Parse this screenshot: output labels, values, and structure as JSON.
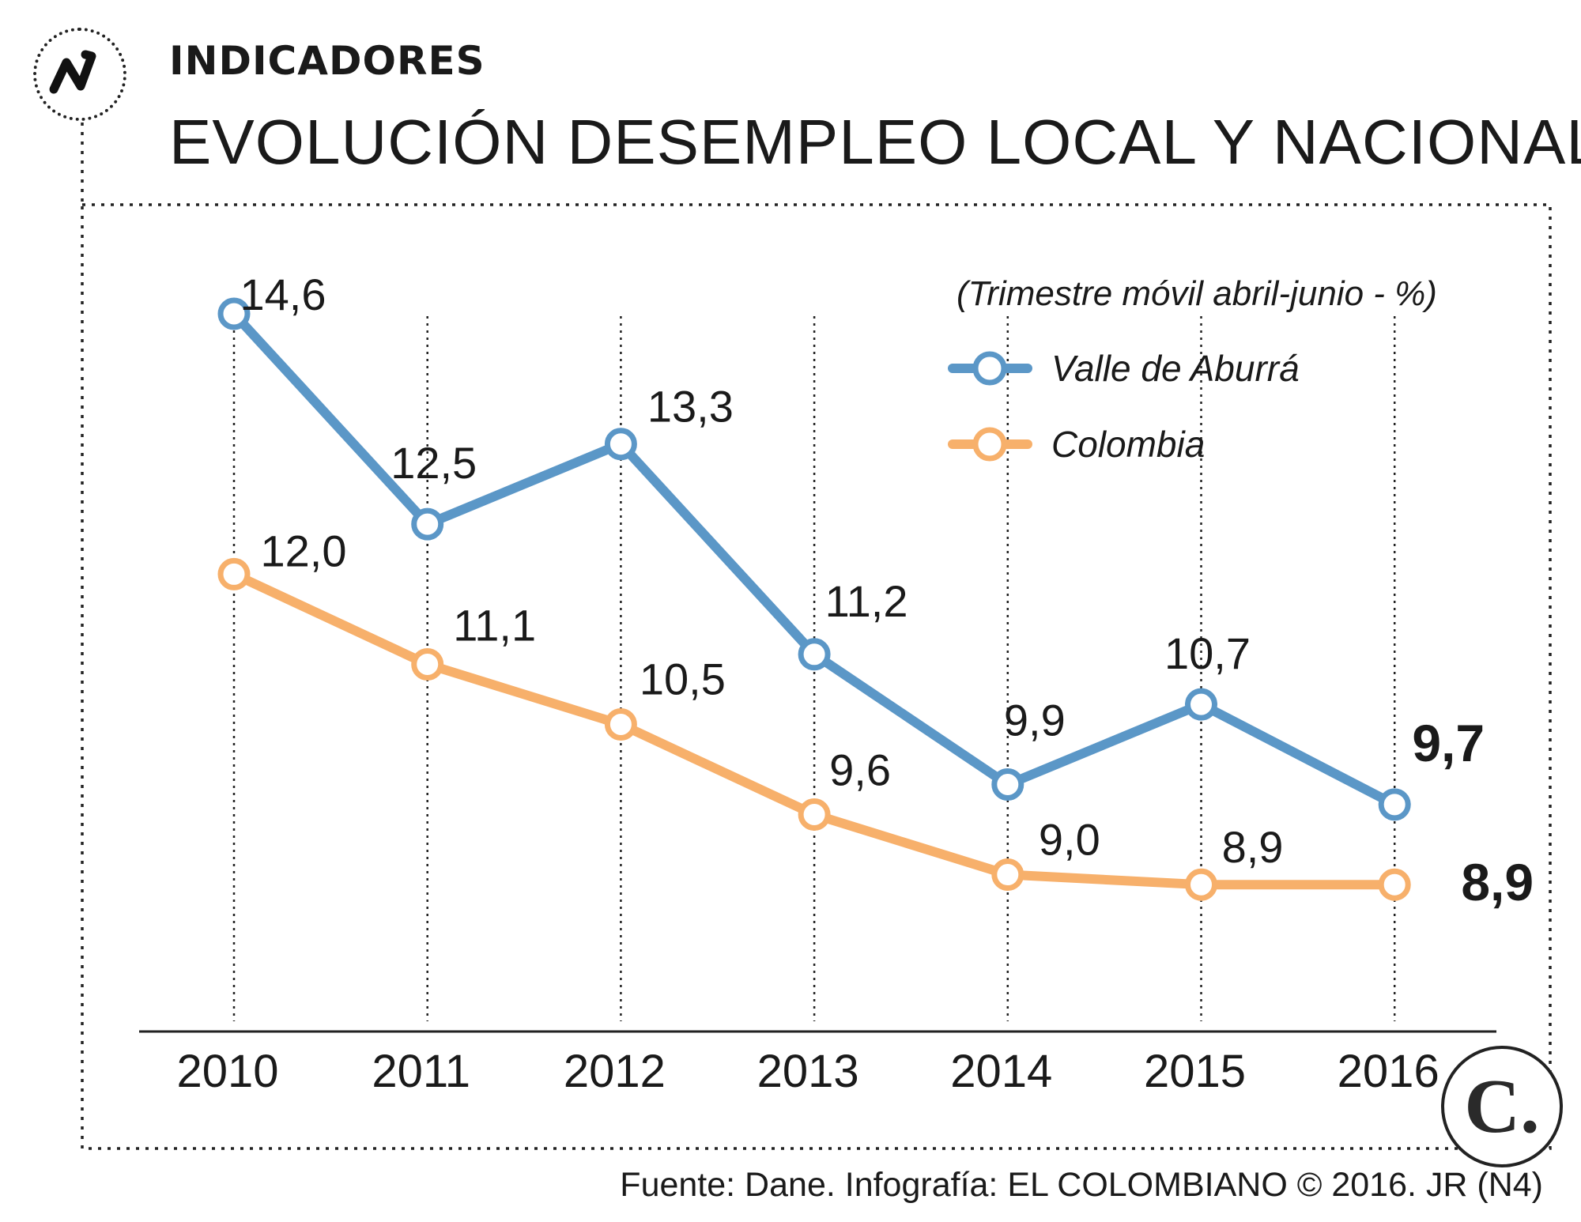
{
  "header": {
    "logo_letter": "N",
    "kicker": "INDICADORES",
    "title": "EVOLUCIÓN DESEMPLEO LOCAL Y NACIONAL"
  },
  "chart_data": {
    "type": "line",
    "title": "EVOLUCIÓN DESEMPLEO LOCAL Y NACIONAL",
    "subtitle": "(Trimestre móvil abril-junio - %)",
    "xlabel": "",
    "ylabel": "",
    "categories": [
      "2010",
      "2011",
      "2012",
      "2013",
      "2014",
      "2015",
      "2016"
    ],
    "ylim": [
      5,
      16
    ],
    "grid": "dotted vertical drop lines",
    "legend_position": "top-right",
    "series": [
      {
        "name": "Valle de Aburrá",
        "color": "#5b97c7",
        "values": [
          14.6,
          12.5,
          13.3,
          11.2,
          9.9,
          10.7,
          9.7
        ],
        "labels": [
          "14,6",
          "12,5",
          "13,3",
          "11,2",
          "9,9",
          "10,7",
          "9,7"
        ]
      },
      {
        "name": "Colombia",
        "color": "#f7b06b",
        "values": [
          12.0,
          11.1,
          10.5,
          9.6,
          9.0,
          8.9,
          8.9
        ],
        "labels": [
          "12,0",
          "11,1",
          "10,5",
          "9,6",
          "9,0",
          "8,9",
          "8,9"
        ]
      }
    ]
  },
  "brand": {
    "mark": "C."
  },
  "footer": {
    "source": "Fuente: Dane. Infografía: EL COLOMBIANO © 2016. JR (N4)"
  }
}
